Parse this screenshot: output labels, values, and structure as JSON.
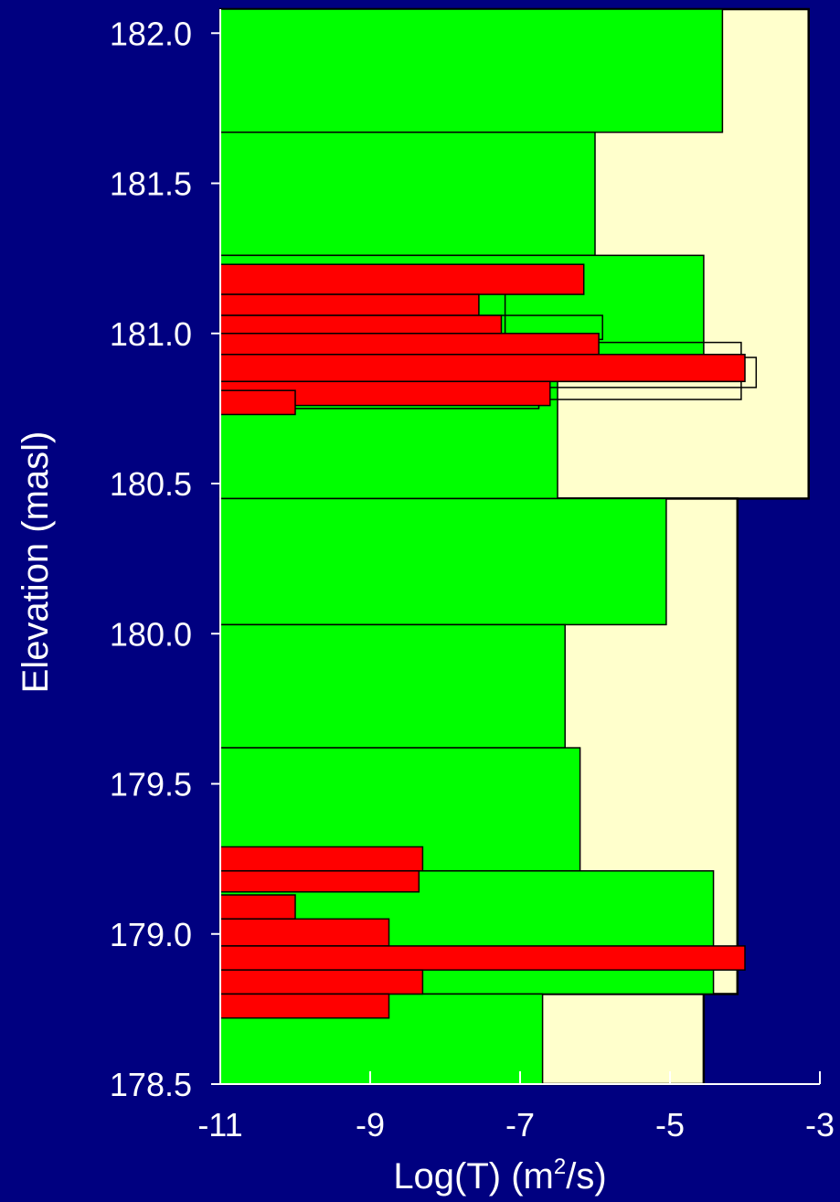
{
  "chart_data": {
    "type": "bar",
    "orientation": "horizontal",
    "xlabel": "Log(T)",
    "xlabel_units_pre": " (m",
    "xlabel_units_sup": "2",
    "xlabel_units_post": "/s)",
    "ylabel": "Elevation (masl)",
    "xlim": [
      -11,
      -3
    ],
    "ylim": [
      178.5,
      182.08
    ],
    "x_ticks": [
      -11,
      -9,
      -7,
      -5,
      -3
    ],
    "x_tick_labels": [
      "-11",
      "-9",
      "-7",
      "-5",
      "-3"
    ],
    "y_ticks": [
      178.5,
      179.0,
      179.5,
      180.0,
      180.5,
      181.0,
      181.5,
      182.0
    ],
    "y_tick_labels": [
      "178.5",
      "179.0",
      "179.5",
      "180.0",
      "180.5",
      "181.0",
      "181.5",
      "182.0"
    ],
    "grid": false,
    "colors": {
      "background": "#000080",
      "plot_area": "#ffffcc",
      "green": "#00ff00",
      "red": "#ff0000",
      "outline": "#000000",
      "text": "#ffffff"
    },
    "series": [
      {
        "color": "green",
        "segments": [
          {
            "bottom": 181.67,
            "top": 182.08,
            "value": -4.3
          },
          {
            "bottom": 181.26,
            "top": 181.67,
            "value": -6.0
          },
          {
            "bottom": 180.86,
            "top": 181.26,
            "value": -4.55
          },
          {
            "bottom": 180.45,
            "top": 180.86,
            "value": -6.5
          },
          {
            "bottom": 180.03,
            "top": 180.45,
            "value": -5.05
          },
          {
            "bottom": 179.62,
            "top": 180.03,
            "value": -6.4
          },
          {
            "bottom": 179.21,
            "top": 179.62,
            "value": -6.2
          },
          {
            "bottom": 178.8,
            "top": 179.21,
            "value": -4.42
          },
          {
            "bottom": 178.5,
            "top": 178.8,
            "value": -6.7
          }
        ]
      },
      {
        "color": "outline",
        "segments": [
          {
            "bottom": 181.0,
            "top": 181.16,
            "value": -7.2
          },
          {
            "bottom": 180.98,
            "top": 181.06,
            "value": -5.9
          },
          {
            "bottom": 180.87,
            "top": 180.97,
            "value": -4.05
          },
          {
            "bottom": 180.82,
            "top": 180.92,
            "value": -3.85
          },
          {
            "bottom": 180.78,
            "top": 180.84,
            "value": -4.05
          },
          {
            "bottom": 180.75,
            "top": 180.82,
            "value": -6.75
          }
        ]
      },
      {
        "color": "red",
        "segments": [
          {
            "bottom": 181.13,
            "top": 181.23,
            "value": -6.15
          },
          {
            "bottom": 181.06,
            "top": 181.13,
            "value": -7.55
          },
          {
            "bottom": 181.0,
            "top": 181.06,
            "value": -7.25
          },
          {
            "bottom": 180.93,
            "top": 181.0,
            "value": -5.95
          },
          {
            "bottom": 180.84,
            "top": 180.93,
            "value": -4.0
          },
          {
            "bottom": 180.76,
            "top": 180.84,
            "value": -6.6
          },
          {
            "bottom": 180.73,
            "top": 180.81,
            "value": -10.0
          },
          {
            "bottom": 179.21,
            "top": 179.29,
            "value": -8.3
          },
          {
            "bottom": 179.14,
            "top": 179.21,
            "value": -8.35
          },
          {
            "bottom": 179.05,
            "top": 179.13,
            "value": -10.0
          },
          {
            "bottom": 178.96,
            "top": 179.05,
            "value": -8.75
          },
          {
            "bottom": 178.88,
            "top": 178.96,
            "value": -4.0
          },
          {
            "bottom": 178.8,
            "top": 178.88,
            "value": -8.3
          },
          {
            "bottom": 178.72,
            "top": 178.8,
            "value": -8.75
          }
        ]
      }
    ],
    "envelope": [
      {
        "bottom": 180.45,
        "top": 182.08,
        "value": -3.15
      },
      {
        "bottom": 178.8,
        "top": 180.45,
        "value": -4.1
      },
      {
        "bottom": 178.5,
        "top": 178.8,
        "value": -4.55
      }
    ]
  }
}
